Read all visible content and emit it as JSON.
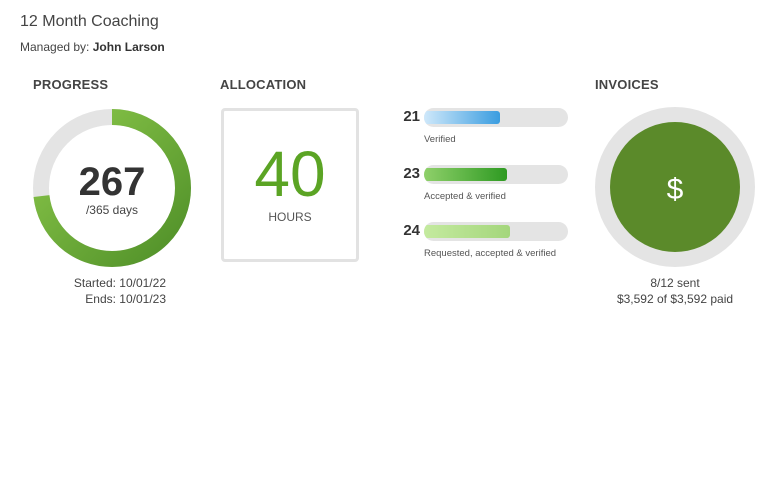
{
  "header": {
    "title": "12 Month Coaching",
    "managed_prefix": "Managed by:",
    "manager": "John Larson"
  },
  "progress": {
    "heading": "PROGRESS",
    "days_elapsed": "267",
    "days_total_label": "/365 days",
    "fraction": 0.7315,
    "started": "Started: 10/01/22",
    "ends": "Ends: 10/01/23"
  },
  "allocation": {
    "heading": "ALLOCATION",
    "value": "40",
    "unit": "HOURS",
    "bars": [
      {
        "count": "21",
        "label": "Verified",
        "fraction": 0.525,
        "color": "#3a9de0"
      },
      {
        "count": "23",
        "label": "Accepted & verified",
        "fraction": 0.575,
        "color": "#3aa22a"
      },
      {
        "count": "24",
        "label": "Requested, accepted & verified",
        "fraction": 0.6,
        "color": "#a9dc7f"
      }
    ]
  },
  "invoices": {
    "heading": "INVOICES",
    "icon": "dollar-icon",
    "symbol": "$",
    "sent": "8/12 sent",
    "paid": "$3,592 of $3,592 paid",
    "color": "#5b8a2a"
  }
}
